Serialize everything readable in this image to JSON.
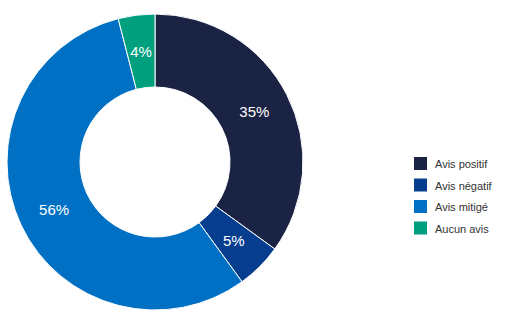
{
  "chart_data": {
    "type": "pie",
    "categories": [
      "Avis positif",
      "Avis négatif",
      "Avis mitigé",
      "Aucun avis"
    ],
    "values": [
      35,
      5,
      56,
      4
    ],
    "value_labels": [
      "35%",
      "5%",
      "56%",
      "4%"
    ],
    "colors": [
      "#1b2344",
      "#063d8e",
      "#0070c4",
      "#00a07f"
    ],
    "data_labels": true,
    "legend": "right"
  }
}
